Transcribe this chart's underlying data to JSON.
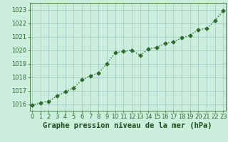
{
  "x": [
    0,
    1,
    2,
    3,
    4,
    5,
    6,
    7,
    8,
    9,
    10,
    11,
    12,
    13,
    14,
    15,
    16,
    17,
    18,
    19,
    20,
    21,
    22,
    23
  ],
  "y": [
    1015.9,
    1016.1,
    1016.2,
    1016.6,
    1016.9,
    1017.2,
    1017.8,
    1018.1,
    1018.3,
    1019.0,
    1019.8,
    1019.9,
    1020.0,
    1019.6,
    1020.1,
    1020.2,
    1020.5,
    1020.6,
    1020.9,
    1021.1,
    1021.5,
    1021.6,
    1022.2,
    1022.9
  ],
  "ylim": [
    1015.5,
    1023.5
  ],
  "yticks": [
    1016,
    1017,
    1018,
    1019,
    1020,
    1021,
    1022,
    1023
  ],
  "xticks": [
    0,
    1,
    2,
    3,
    4,
    5,
    6,
    7,
    8,
    9,
    10,
    11,
    12,
    13,
    14,
    15,
    16,
    17,
    18,
    19,
    20,
    21,
    22,
    23
  ],
  "line_color": "#2d6a2d",
  "marker": "D",
  "marker_size": 2.5,
  "background_color": "#cceedd",
  "grid_color": "#aacccc",
  "xlabel": "Graphe pression niveau de la mer (hPa)",
  "xlabel_color": "#1a4a1a",
  "tick_color": "#2d6a2d",
  "tick_fontsize": 6,
  "xlabel_fontsize": 7.5,
  "line_width": 1.0
}
